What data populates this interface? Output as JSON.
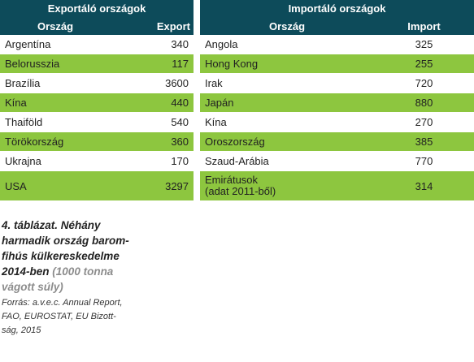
{
  "table": {
    "export_group_title": "Exportáló országok",
    "import_group_title": "Importáló országok",
    "export_country_header": "Ország",
    "export_value_header": "Export",
    "import_country_header": "Ország",
    "import_value_header": "Import",
    "rows": [
      {
        "export_country": "Argentína",
        "export_value": "340",
        "import_country": "Angola",
        "import_value": "325"
      },
      {
        "export_country": "Belorusszia",
        "export_value": "117",
        "import_country": "Hong Kong",
        "import_value": "255"
      },
      {
        "export_country": "Brazília",
        "export_value": "3600",
        "import_country": "Irak",
        "import_value": "720"
      },
      {
        "export_country": "Kína",
        "export_value": "440",
        "import_country": "Japán",
        "import_value": "880"
      },
      {
        "export_country": "Thaiföld",
        "export_value": "540",
        "import_country": "Kína",
        "import_value": "270"
      },
      {
        "export_country": "Törökország",
        "export_value": "360",
        "import_country": "Oroszország",
        "import_value": "385"
      },
      {
        "export_country": "Ukrajna",
        "export_value": "170",
        "import_country": "Szaud-Arábia",
        "import_value": "770"
      },
      {
        "export_country": "USA",
        "export_value": "3297",
        "import_country_line1": "Emirátusok",
        "import_country_line2": "(adat 2011-ből)",
        "import_value": "314"
      }
    ]
  },
  "caption": {
    "title_line1": "4. táblázat. Néhány",
    "title_line2": "harmadik ország barom-",
    "title_line3": "fihús külkereskedelme",
    "title_line4_main": "2014-ben",
    "title_line4_unit": "(1000 tonna",
    "title_line5_unit": "vágott súly)",
    "source_line1": "Forrás: a.v.e.c. Annual Report,",
    "source_line2": "FAO, EUROSTAT, EU Bizott-",
    "source_line3": "ság, 2015"
  },
  "colors": {
    "header_bg": "#0d4b5a",
    "stripe_green": "#8dc63f",
    "unit_gray": "#8c8c8c"
  }
}
